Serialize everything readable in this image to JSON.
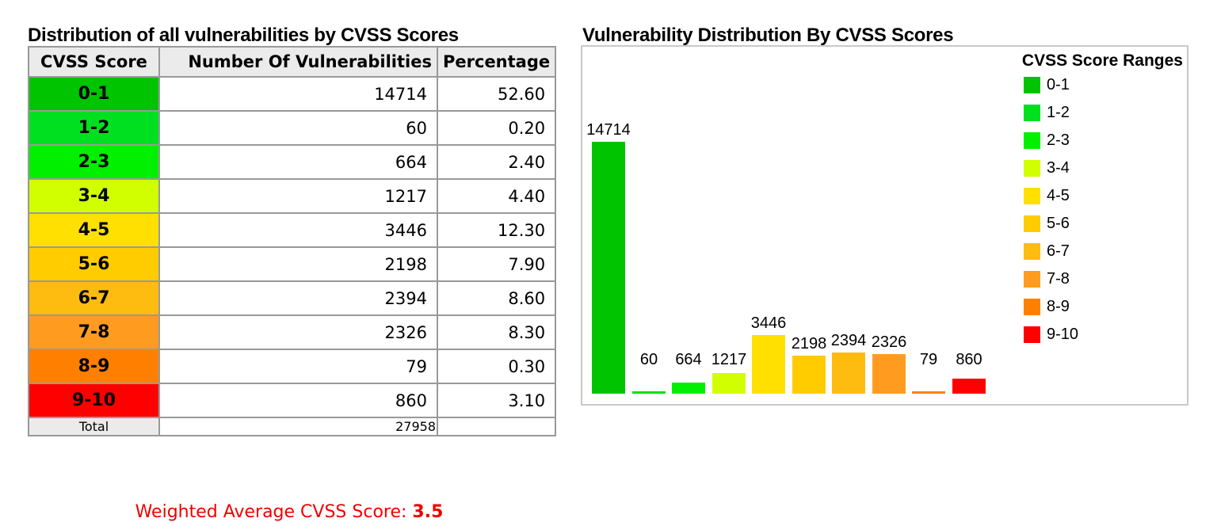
{
  "table": {
    "title": "Distribution of all vulnerabilities by CVSS Scores",
    "columns": [
      "CVSS Score",
      "Number Of Vulnerabilities",
      "Percentage"
    ],
    "rows": [
      {
        "range": "0-1",
        "count": "14714",
        "percentage": "52.60",
        "color": "#00C400"
      },
      {
        "range": "1-2",
        "count": "60",
        "percentage": "0.20",
        "color": "#00E020"
      },
      {
        "range": "2-3",
        "count": "664",
        "percentage": "2.40",
        "color": "#00F000"
      },
      {
        "range": "3-4",
        "count": "1217",
        "percentage": "4.40",
        "color": "#D1FF00"
      },
      {
        "range": "4-5",
        "count": "3446",
        "percentage": "12.30",
        "color": "#FFE000"
      },
      {
        "range": "5-6",
        "count": "2198",
        "percentage": "7.90",
        "color": "#FFCC00"
      },
      {
        "range": "6-7",
        "count": "2394",
        "percentage": "8.60",
        "color": "#FFBC10"
      },
      {
        "range": "7-8",
        "count": "2326",
        "percentage": "8.30",
        "color": "#FF9C20"
      },
      {
        "range": "8-9",
        "count": "79",
        "percentage": "0.30",
        "color": "#FF8000"
      },
      {
        "range": "9-10",
        "count": "860",
        "percentage": "3.10",
        "color": "#FF0000"
      }
    ],
    "total": {
      "label": "Total",
      "count": "27958",
      "percentage": ""
    },
    "weighted_average_label": "Weighted Average CVSS Score: ",
    "weighted_average_value": "3.5",
    "weighted_average_color": "#EE0000"
  },
  "chart": {
    "title": "Vulnerability Distribution By CVSS Scores",
    "legend_title": "CVSS Score Ranges"
  },
  "chart_data": {
    "type": "bar",
    "title": "Vulnerability Distribution By CVSS Scores",
    "categories": [
      "0-1",
      "1-2",
      "2-3",
      "3-4",
      "4-5",
      "5-6",
      "6-7",
      "7-8",
      "8-9",
      "9-10"
    ],
    "values": [
      14714,
      60,
      664,
      1217,
      3446,
      2198,
      2394,
      2326,
      79,
      860
    ],
    "colors": [
      "#00C400",
      "#00E020",
      "#00F000",
      "#D1FF00",
      "#FFE000",
      "#FFCC00",
      "#FFBC10",
      "#FF9C20",
      "#FF8000",
      "#FF0000"
    ],
    "bar_value_labels": true,
    "legend_title": "CVSS Score Ranges",
    "legend_position": "right",
    "xlabel": "",
    "ylabel": "",
    "ylim": [
      0,
      15000
    ],
    "grid": false,
    "axes_visible": false
  }
}
